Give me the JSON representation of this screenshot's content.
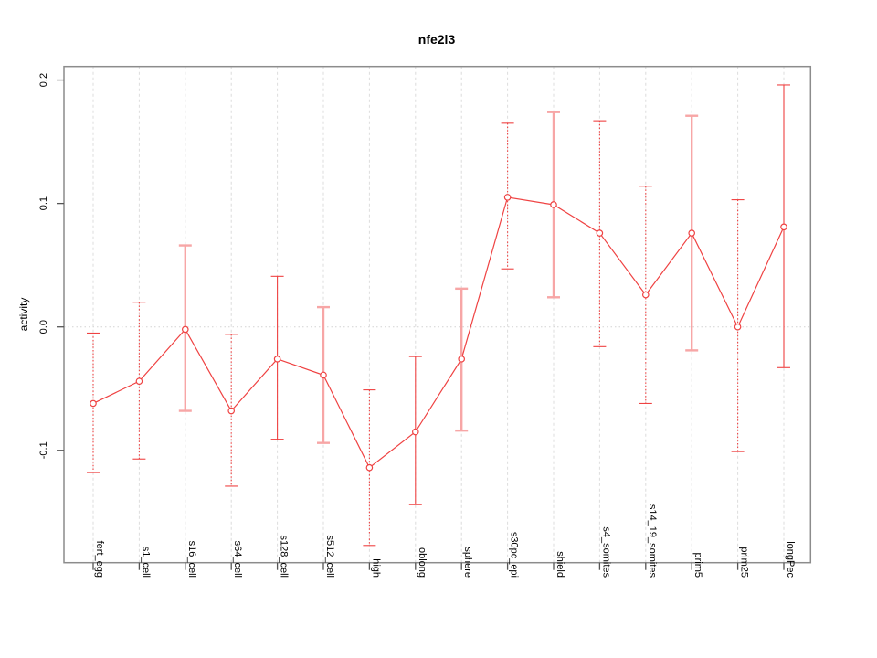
{
  "chart_data": {
    "type": "line",
    "title": "nfe2l3",
    "xlabel": "",
    "ylabel": "activity",
    "ylim": [
      -0.191,
      0.211
    ],
    "yticks": [
      0.2,
      0.1,
      0.0,
      -0.1
    ],
    "ytick_labels": [
      "0.2",
      "0.1",
      "0.0",
      "-0.1"
    ],
    "grid": "vertical-dashed-per-category, dotted-horizontal-at-zero",
    "legend_position": "none",
    "categories": [
      "fert_egg",
      "s1_cell",
      "s16_cell",
      "s64_cell",
      "s128_cell",
      "s512_cell",
      "high",
      "oblong",
      "sphere",
      "s30pc_epi",
      "shield",
      "s4_somites",
      "s14_19_somites",
      "prim5",
      "prim25",
      "longPec"
    ],
    "series": [
      {
        "name": "activity",
        "marker": "open-circle",
        "values": [
          -0.062,
          -0.044,
          -0.002,
          -0.068,
          -0.026,
          -0.039,
          -0.114,
          -0.085,
          -0.026,
          0.105,
          0.099,
          0.076,
          0.026,
          0.076,
          0.0,
          0.081
        ],
        "error_low": [
          -0.118,
          -0.107,
          -0.068,
          -0.129,
          -0.091,
          -0.094,
          -0.177,
          -0.144,
          -0.084,
          0.047,
          0.024,
          -0.016,
          -0.062,
          -0.019,
          -0.101,
          -0.033
        ],
        "error_high": [
          -0.005,
          0.02,
          0.066,
          -0.006,
          0.041,
          0.016,
          -0.051,
          -0.024,
          0.031,
          0.165,
          0.174,
          0.167,
          0.114,
          0.171,
          0.103,
          0.196
        ],
        "error_bar_styles": [
          "dotted",
          "dotted",
          "thick",
          "dotted",
          "solid",
          "thick",
          "dotted",
          "solid",
          "thick",
          "dotted",
          "thick",
          "dotted",
          "dotted",
          "thick",
          "dotted",
          "solid"
        ]
      }
    ],
    "colors": {
      "line": "#ef4242",
      "marker_stroke": "#ef4242",
      "marker_fill": "#ffffff",
      "error_bar_red": "#ef4242",
      "error_bar_pink": "#f7a6a6",
      "gridline": "#dcdcdc",
      "zero_line": "#d4d4d4",
      "plot_border": "#8c8c8c",
      "axis_tick": "#555555",
      "background": "#ffffff"
    }
  }
}
